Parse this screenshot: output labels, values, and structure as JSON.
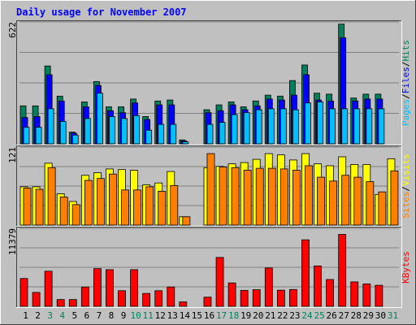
{
  "colors": {
    "background": "#c0c0c0",
    "panel": "#c0c0c0",
    "grid": "#808080",
    "title": "#0000ff",
    "hits": "#00805c",
    "files": "#0000ff",
    "pages": "#00c0ff",
    "visits": "#ffff00",
    "sites": "#ff8000",
    "kbytes": "#ff0000",
    "day_label": "#000000",
    "weekend_label": "#00805c"
  },
  "chart_data": {
    "type": "bar",
    "title": "Daily usage for November 2007",
    "categories": [
      "1",
      "2",
      "3",
      "4",
      "5",
      "6",
      "7",
      "8",
      "9",
      "10",
      "11",
      "12",
      "13",
      "14",
      "15",
      "16",
      "17",
      "18",
      "19",
      "20",
      "21",
      "22",
      "23",
      "24",
      "25",
      "26",
      "27",
      "28",
      "29",
      "30",
      "31"
    ],
    "weekend_days": [
      "3",
      "4",
      "10",
      "11",
      "17",
      "18",
      "24",
      "25",
      "31"
    ],
    "panels": [
      {
        "id": "hits-files-pages",
        "max_label": "622",
        "ymax": 622,
        "axis_label": {
          "parts": [
            {
              "text": "Pages",
              "color_key": "pages"
            },
            {
              "text": "/",
              "color_key": "day_label"
            },
            {
              "text": "Files",
              "color_key": "files"
            },
            {
              "text": "/",
              "color_key": "day_label"
            },
            {
              "text": "Hits",
              "color_key": "hits"
            }
          ]
        },
        "series": [
          {
            "name": "Hits",
            "color_key": "hits",
            "values": [
              195,
              195,
              400,
              245,
              60,
              215,
              320,
              190,
              190,
              230,
              140,
              220,
              225,
              20,
              0,
              175,
              200,
              215,
              190,
              220,
              250,
              245,
              325,
              405,
              260,
              255,
              615,
              235,
              255,
              255,
              null
            ]
          },
          {
            "name": "Files",
            "color_key": "files",
            "values": [
              135,
              140,
              355,
              220,
              55,
              190,
              300,
              170,
              160,
              210,
              125,
              200,
              200,
              15,
              0,
              160,
              170,
              200,
              175,
              195,
              230,
              225,
              250,
              355,
              225,
              220,
              545,
              220,
              230,
              230,
              null
            ]
          },
          {
            "name": "Pages",
            "color_key": "pages",
            "values": [
              85,
              85,
              180,
              115,
              45,
              130,
              260,
              140,
              130,
              145,
              70,
              100,
              100,
              10,
              0,
              100,
              110,
              150,
              160,
              175,
              180,
              180,
              175,
              210,
              215,
              180,
              180,
              180,
              180,
              180,
              null
            ]
          }
        ]
      },
      {
        "id": "visits-sites",
        "max_label": "121",
        "ymax": 121,
        "axis_label": {
          "parts": [
            {
              "text": "Sites",
              "color_key": "sites"
            },
            {
              "text": "/",
              "color_key": "day_label"
            },
            {
              "text": "Visits",
              "color_key": "visits"
            }
          ]
        },
        "series": [
          {
            "name": "Visits",
            "color_key": "visits",
            "values": [
              60,
              60,
              97,
              49,
              37,
              78,
              82,
              88,
              87,
              86,
              63,
              66,
              84,
              13,
              0,
              90,
              92,
              96,
              98,
              103,
              112,
              110,
              102,
              112,
              96,
              93,
              107,
              95,
              95,
              48,
              104
            ]
          },
          {
            "name": "Sites",
            "color_key": "sites",
            "values": [
              58,
              56,
              90,
              44,
              32,
              70,
              73,
              80,
              55,
              55,
              60,
              53,
              62,
              13,
              0,
              112,
              91,
              90,
              86,
              89,
              89,
              88,
              86,
              93,
              75,
              69,
              78,
              75,
              68,
              52,
              85
            ]
          }
        ]
      },
      {
        "id": "kbytes",
        "max_label": "11379",
        "ymax": 11379,
        "axis_label": {
          "parts": [
            {
              "text": "KBytes",
              "color_key": "kbytes"
            }
          ]
        },
        "series": [
          {
            "name": "KBytes",
            "color_key": "kbytes",
            "values": [
              4100,
              2050,
              5180,
              1000,
              1000,
              2850,
              5550,
              5400,
              2300,
              5400,
              1900,
              2300,
              2850,
              650,
              0,
              1350,
              7200,
              3450,
              2350,
              2450,
              5650,
              2380,
              2480,
              9800,
              5950,
              3950,
              10600,
              3600,
              3300,
              3100,
              null
            ]
          }
        ]
      }
    ]
  }
}
